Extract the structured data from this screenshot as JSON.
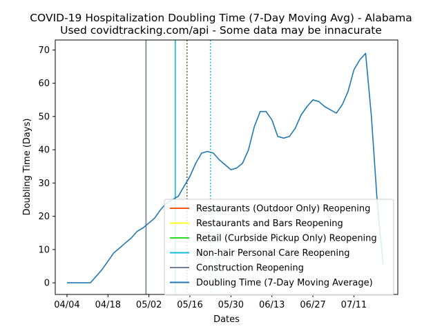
{
  "chart_data": {
    "type": "line",
    "title": "COVID-19 Hospitalization Doubling Time (7-Day Moving Avg) - Alabama",
    "subtitle": "Used covidtracking.com/api - Some data may be innacurate",
    "xlabel": "Dates",
    "ylabel": "Doubling Time (Days)",
    "x_tick_labels": [
      "04/04",
      "04/18",
      "05/02",
      "05/16",
      "05/30",
      "06/13",
      "06/27",
      "07/11"
    ],
    "x_tick_dates": [
      "2020-04-04",
      "2020-04-18",
      "2020-05-02",
      "2020-05-16",
      "2020-05-30",
      "2020-06-13",
      "2020-06-27",
      "2020-07-11"
    ],
    "xlim": [
      "2020-03-31",
      "2020-07-26"
    ],
    "y_ticks": [
      0,
      10,
      20,
      30,
      40,
      50,
      60,
      70
    ],
    "ylim": [
      -3.5,
      73
    ],
    "grid": false,
    "legend_position": "lower-right",
    "events": [
      {
        "name": "Restaurants (Outdoor Only) Reopening",
        "date": "2020-05-11",
        "color": "#ff5511",
        "style": "solid",
        "visible_line": false
      },
      {
        "name": "Restaurants and Bars Reopening",
        "date": "2020-05-11",
        "color": "#ffff22",
        "style": "solid",
        "visible_line": false
      },
      {
        "name": "Retail (Curbside Pickup Only) Reopening",
        "date": "2020-05-11",
        "color": "#22dd22",
        "style": "solid",
        "visible_line": false
      },
      {
        "name": "Non-hair Personal Care Reopening",
        "date": "2020-05-11",
        "color": "#11bbdd",
        "style": "solid",
        "visible_line": true
      },
      {
        "name": "Construction Reopening",
        "date": "2020-05-01",
        "color": "#708090",
        "style": "solid",
        "visible_line": true
      },
      {
        "name": "",
        "date": "2020-05-15",
        "color": "#556b2f",
        "style": "dotted",
        "visible_line": true
      },
      {
        "name": "",
        "date": "2020-05-23",
        "color": "#17becf",
        "style": "dotted",
        "visible_line": true
      }
    ],
    "series": [
      {
        "name": "Doubling Time (7-Day Moving Average)",
        "color": "#1f77b4",
        "x": [
          "2020-04-04",
          "2020-04-06",
          "2020-04-08",
          "2020-04-10",
          "2020-04-12",
          "2020-04-14",
          "2020-04-16",
          "2020-04-18",
          "2020-04-20",
          "2020-04-22",
          "2020-04-24",
          "2020-04-26",
          "2020-04-28",
          "2020-04-30",
          "2020-05-02",
          "2020-05-04",
          "2020-05-06",
          "2020-05-08",
          "2020-05-10",
          "2020-05-12",
          "2020-05-14",
          "2020-05-16",
          "2020-05-18",
          "2020-05-20",
          "2020-05-22",
          "2020-05-24",
          "2020-05-26",
          "2020-05-28",
          "2020-05-30",
          "2020-06-01",
          "2020-06-03",
          "2020-06-05",
          "2020-06-07",
          "2020-06-09",
          "2020-06-11",
          "2020-06-13",
          "2020-06-15",
          "2020-06-17",
          "2020-06-19",
          "2020-06-21",
          "2020-06-23",
          "2020-06-25",
          "2020-06-27",
          "2020-06-29",
          "2020-07-01",
          "2020-07-03",
          "2020-07-05",
          "2020-07-07",
          "2020-07-09",
          "2020-07-11",
          "2020-07-13",
          "2020-07-15",
          "2020-07-17",
          "2020-07-19",
          "2020-07-21"
        ],
        "y": [
          0,
          0,
          0,
          0,
          0,
          2,
          4,
          6.5,
          9,
          10.5,
          12,
          13.5,
          15.5,
          16.5,
          18,
          19.5,
          22,
          24,
          25,
          26,
          29,
          32,
          36,
          39,
          39.5,
          39,
          37,
          35.5,
          34,
          34.5,
          36,
          40,
          47,
          51.5,
          51.5,
          49,
          44,
          43.5,
          44,
          46.5,
          50.5,
          53,
          55,
          54.5,
          53,
          52,
          51,
          53.5,
          57.5,
          64,
          67,
          69,
          50,
          24,
          5.5
        ]
      }
    ]
  }
}
